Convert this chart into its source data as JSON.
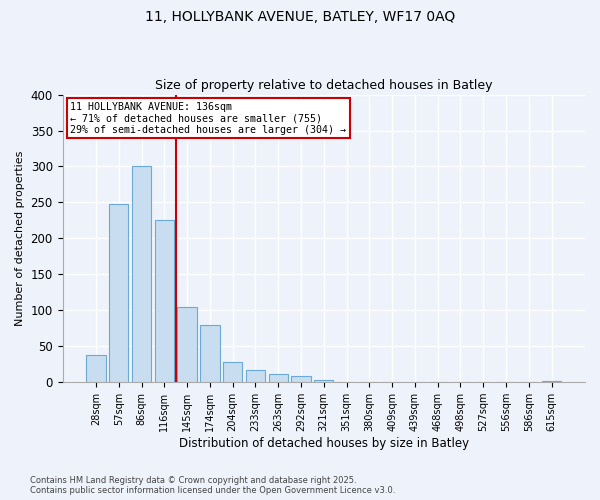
{
  "title1": "11, HOLLYBANK AVENUE, BATLEY, WF17 0AQ",
  "title2": "Size of property relative to detached houses in Batley",
  "xlabel": "Distribution of detached houses by size in Batley",
  "ylabel": "Number of detached properties",
  "bin_labels": [
    "28sqm",
    "57sqm",
    "86sqm",
    "116sqm",
    "145sqm",
    "174sqm",
    "204sqm",
    "233sqm",
    "263sqm",
    "292sqm",
    "321sqm",
    "351sqm",
    "380sqm",
    "409sqm",
    "439sqm",
    "468sqm",
    "498sqm",
    "527sqm",
    "556sqm",
    "586sqm",
    "615sqm"
  ],
  "bar_values": [
    38,
    248,
    300,
    225,
    105,
    79,
    28,
    17,
    11,
    8,
    3,
    1,
    0,
    0,
    0,
    0,
    0,
    0,
    0,
    0,
    2
  ],
  "bar_color": "#c8ddf0",
  "bar_edge_color": "#6aaad4",
  "vline_x_index": 3.5,
  "vline_color": "#cc0000",
  "annotation_title": "11 HOLLYBANK AVENUE: 136sqm",
  "annotation_line2": "← 71% of detached houses are smaller (755)",
  "annotation_line3": "29% of semi-detached houses are larger (304) →",
  "annotation_box_color": "#cc0000",
  "ylim": [
    0,
    400
  ],
  "yticks": [
    0,
    50,
    100,
    150,
    200,
    250,
    300,
    350,
    400
  ],
  "background_color": "#eef2fb",
  "grid_color": "#ffffff",
  "footer_line1": "Contains HM Land Registry data © Crown copyright and database right 2025.",
  "footer_line2": "Contains public sector information licensed under the Open Government Licence v3.0."
}
